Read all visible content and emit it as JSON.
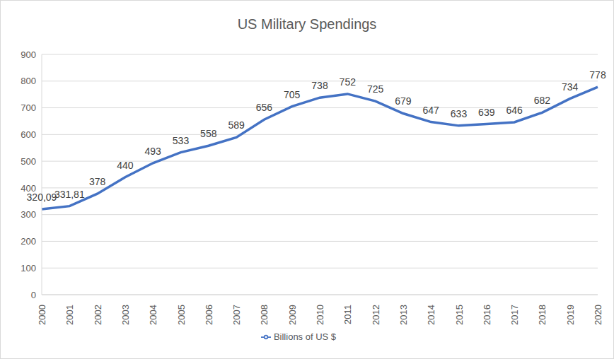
{
  "chart_data": {
    "type": "line",
    "title": "US Military Spendings",
    "categories": [
      "2000",
      "2001",
      "2002",
      "2003",
      "2004",
      "2005",
      "2006",
      "2007",
      "2008",
      "2009",
      "2010",
      "2011",
      "2012",
      "2013",
      "2014",
      "2015",
      "2016",
      "2017",
      "2018",
      "2019",
      "2020"
    ],
    "series": [
      {
        "name": "Billions of US $",
        "color": "#4472c4",
        "values": [
          320.09,
          331.81,
          378,
          440,
          493,
          533,
          558,
          589,
          656,
          705,
          738,
          752,
          725,
          679,
          647,
          633,
          639,
          646,
          682,
          734,
          778
        ],
        "value_labels": [
          "320,09",
          "331,81",
          "378",
          "440",
          "493",
          "533",
          "558",
          "589",
          "656",
          "705",
          "738",
          "752",
          "725",
          "679",
          "647",
          "633",
          "639",
          "646",
          "682",
          "734",
          "778"
        ]
      }
    ],
    "ylim": [
      0,
      900
    ],
    "yticks": [
      0,
      100,
      200,
      300,
      400,
      500,
      600,
      700,
      800,
      900
    ],
    "grid": true,
    "data_labels": true,
    "legend": "bottom"
  }
}
